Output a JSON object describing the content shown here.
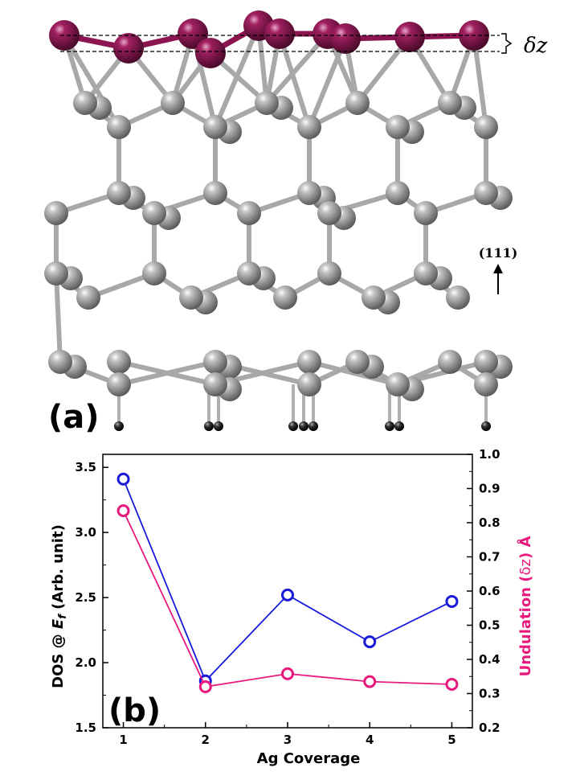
{
  "panel_a": {
    "label": "(a)",
    "undulation_label": "δz",
    "direction_label": "(111)"
  },
  "panel_b_label": "(b)",
  "colors": {
    "dos_series": "#1a1adb",
    "undulation_series": "#e8197d",
    "top_atom": "#8c1450",
    "si_atom": "#8e8e8e",
    "h_atom": "#1e1e1e"
  },
  "chart_data": {
    "type": "line",
    "x": [
      1,
      2,
      3,
      4,
      5
    ],
    "xlabel": "Ag Coverage",
    "xlim": [
      0.75,
      5.25
    ],
    "x_ticks": [
      "1",
      "2",
      "3",
      "4",
      "5"
    ],
    "left_axis": {
      "label_prefix": "DOS @ ",
      "label_var": "E",
      "label_sub": "f",
      "label_suffix": " (Arb. unit)",
      "ylim": [
        1.5,
        3.6
      ],
      "ticks": [
        "1.5",
        "2.0",
        "2.5",
        "3.0",
        "3.5"
      ]
    },
    "right_axis": {
      "label_prefix": "Undulation (",
      "label_symbol": "δz",
      "label_suffix": ") Å",
      "ylim": [
        0.2,
        1.0
      ],
      "ticks": [
        "0.2",
        "0.3",
        "0.4",
        "0.5",
        "0.6",
        "0.7",
        "0.8",
        "0.9",
        "1.0"
      ]
    },
    "series": [
      {
        "axis": "left",
        "color": "#1a1adb",
        "values": [
          3.41,
          1.86,
          2.52,
          2.16,
          2.47
        ]
      },
      {
        "axis": "right",
        "color": "#e8197d",
        "values": [
          0.835,
          0.32,
          0.358,
          0.335,
          0.327
        ]
      }
    ]
  }
}
